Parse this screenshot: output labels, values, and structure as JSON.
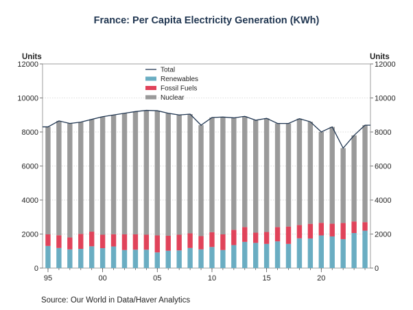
{
  "chart_data": {
    "type": "bar",
    "title": "France: Per Capita Electricity Generation (KWh)",
    "source": "Source:  Our World in Data/Haver Analytics",
    "ylabel_left": "Units",
    "ylabel_right": "Units",
    "ylim": [
      0,
      12000
    ],
    "yticks": [
      0,
      2000,
      4000,
      6000,
      8000,
      10000,
      12000
    ],
    "ytick_labels": [
      "0",
      "2000",
      "4000",
      "6000",
      "8000",
      "10000",
      "12000"
    ],
    "xtick_labels": [
      {
        "year": 1995,
        "label": "95"
      },
      {
        "year": 2000,
        "label": "00"
      },
      {
        "year": 2005,
        "label": "05"
      },
      {
        "year": 2010,
        "label": "10"
      },
      {
        "year": 2015,
        "label": "15"
      },
      {
        "year": 2020,
        "label": "20"
      }
    ],
    "years": [
      1995,
      1996,
      1997,
      1998,
      1999,
      2000,
      2001,
      2002,
      2003,
      2004,
      2005,
      2006,
      2007,
      2008,
      2009,
      2010,
      2011,
      2012,
      2013,
      2014,
      2015,
      2016,
      2017,
      2018,
      2019,
      2020,
      2021,
      2022,
      2023,
      2024
    ],
    "legend": [
      "Total",
      "Renewables",
      "Fossil Fuels",
      "Nuclear"
    ],
    "series": [
      {
        "name": "Renewables",
        "color": "#6aadc2",
        "values": [
          1300,
          1180,
          1100,
          1130,
          1280,
          1170,
          1270,
          1060,
          1080,
          1080,
          920,
          1020,
          1040,
          1180,
          1100,
          1240,
          1060,
          1350,
          1540,
          1480,
          1420,
          1570,
          1420,
          1750,
          1740,
          1920,
          1860,
          1700,
          2060,
          2200
        ]
      },
      {
        "name": "Fossil Fuels",
        "color": "#e0435a",
        "values": [
          680,
          750,
          700,
          880,
          860,
          790,
          720,
          920,
          900,
          880,
          1000,
          880,
          920,
          860,
          780,
          870,
          920,
          900,
          870,
          600,
          700,
          840,
          1020,
          780,
          860,
          740,
          750,
          950,
          680,
          500
        ]
      },
      {
        "name": "Nuclear",
        "color": "#9a9a9a",
        "values": [
          6320,
          6720,
          6700,
          6570,
          6600,
          6940,
          7010,
          7120,
          7220,
          7310,
          7330,
          7200,
          7040,
          7010,
          6520,
          6740,
          6900,
          6580,
          6510,
          6610,
          6680,
          6090,
          6060,
          6250,
          6000,
          5340,
          5690,
          4400,
          5060,
          5700
        ]
      },
      {
        "name": "Total",
        "color": "#1f3550",
        "values": [
          8300,
          8650,
          8500,
          8580,
          8740,
          8900,
          9000,
          9100,
          9200,
          9270,
          9250,
          9100,
          9000,
          9050,
          8400,
          8850,
          8880,
          8830,
          8920,
          8690,
          8800,
          8500,
          8500,
          8780,
          8600,
          8000,
          8300,
          7050,
          7800,
          8400
        ]
      }
    ]
  }
}
